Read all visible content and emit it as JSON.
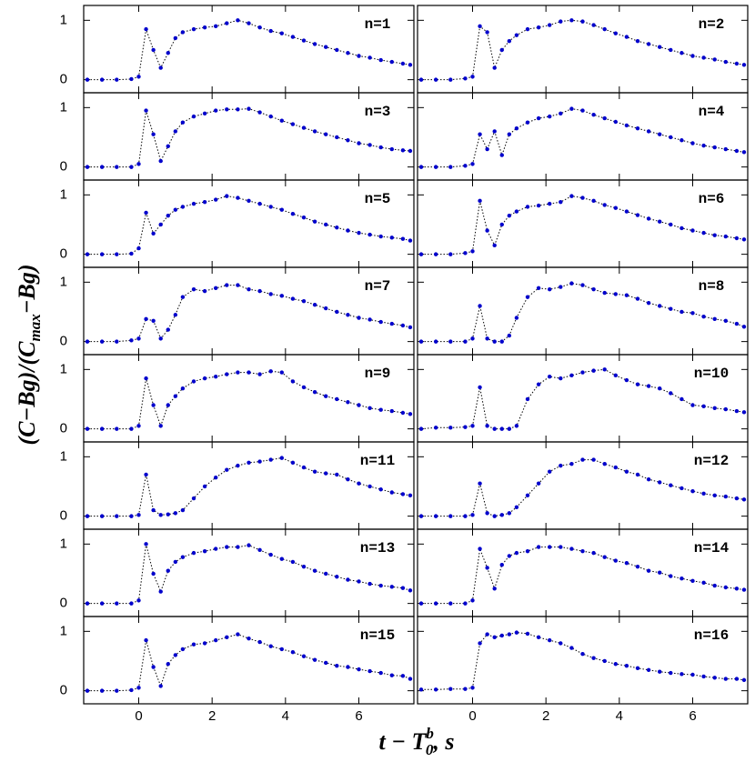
{
  "chart_data": {
    "type": "line",
    "layout": "panels-2-columns",
    "xlabel": {
      "text1": "t  −  T",
      "sub": "0",
      "sup": "b",
      "text2": ",  s"
    },
    "ylabel": {
      "text1": "(C−Bg)/(C",
      "sub": "max",
      "text2": "−Bg)"
    },
    "xlim": [
      -1.5,
      7.5
    ],
    "xticks": [
      0,
      2,
      4,
      6
    ],
    "ylim": [
      -0.22,
      1.25
    ],
    "yticks": [
      0,
      1
    ],
    "line_color": "#000000",
    "x": [
      -1.4,
      -1.0,
      -0.6,
      -0.2,
      0,
      0.2,
      0.4,
      0.6,
      0.8,
      1.0,
      1.2,
      1.5,
      1.8,
      2.1,
      2.4,
      2.7,
      3.0,
      3.3,
      3.6,
      3.9,
      4.2,
      4.5,
      4.8,
      5.1,
      5.4,
      5.7,
      6.0,
      6.3,
      6.6,
      6.9,
      7.2,
      7.4
    ],
    "series": [
      {
        "name": "n=1",
        "color": "#0000cc",
        "values": [
          0,
          0,
          0,
          0.01,
          0.05,
          0.85,
          0.5,
          0.2,
          0.45,
          0.7,
          0.8,
          0.85,
          0.88,
          0.9,
          0.95,
          1.0,
          0.95,
          0.88,
          0.82,
          0.78,
          0.72,
          0.66,
          0.6,
          0.55,
          0.5,
          0.45,
          0.4,
          0.37,
          0.33,
          0.3,
          0.27,
          0.25
        ]
      },
      {
        "name": "n=2",
        "color": "#0000cc",
        "values": [
          0,
          0,
          0,
          0.02,
          0.05,
          0.9,
          0.8,
          0.2,
          0.5,
          0.65,
          0.75,
          0.85,
          0.88,
          0.92,
          0.98,
          1.0,
          0.98,
          0.92,
          0.85,
          0.78,
          0.72,
          0.65,
          0.6,
          0.55,
          0.5,
          0.45,
          0.4,
          0.37,
          0.34,
          0.3,
          0.27,
          0.25
        ]
      },
      {
        "name": "n=3",
        "color": "#0000cc",
        "values": [
          0,
          0,
          0,
          0,
          0.05,
          0.95,
          0.55,
          0.1,
          0.35,
          0.6,
          0.75,
          0.85,
          0.9,
          0.95,
          0.97,
          0.97,
          0.98,
          0.92,
          0.85,
          0.78,
          0.72,
          0.66,
          0.6,
          0.55,
          0.5,
          0.45,
          0.4,
          0.37,
          0.33,
          0.3,
          0.28,
          0.27
        ]
      },
      {
        "name": "n=4",
        "color": "#0000cc",
        "values": [
          0,
          0,
          0,
          0.02,
          0.05,
          0.55,
          0.3,
          0.6,
          0.2,
          0.55,
          0.65,
          0.75,
          0.82,
          0.85,
          0.9,
          0.98,
          0.95,
          0.88,
          0.82,
          0.76,
          0.7,
          0.65,
          0.6,
          0.55,
          0.5,
          0.45,
          0.4,
          0.36,
          0.33,
          0.3,
          0.27,
          0.25
        ]
      },
      {
        "name": "n=5",
        "color": "#0000cc",
        "values": [
          0,
          0,
          0,
          0.01,
          0.1,
          0.7,
          0.35,
          0.5,
          0.65,
          0.75,
          0.8,
          0.85,
          0.88,
          0.92,
          0.98,
          0.95,
          0.9,
          0.85,
          0.8,
          0.75,
          0.68,
          0.62,
          0.55,
          0.5,
          0.45,
          0.4,
          0.36,
          0.33,
          0.3,
          0.28,
          0.26,
          0.23
        ]
      },
      {
        "name": "n=6",
        "color": "#0000cc",
        "values": [
          0,
          0,
          0,
          0.02,
          0.05,
          0.9,
          0.4,
          0.15,
          0.5,
          0.65,
          0.72,
          0.8,
          0.82,
          0.85,
          0.88,
          0.98,
          0.95,
          0.9,
          0.83,
          0.78,
          0.72,
          0.66,
          0.6,
          0.55,
          0.5,
          0.44,
          0.4,
          0.36,
          0.32,
          0.3,
          0.27,
          0.25
        ]
      },
      {
        "name": "n=7",
        "color": "#0000cc",
        "values": [
          0,
          0,
          0,
          0.02,
          0.05,
          0.38,
          0.35,
          0.05,
          0.2,
          0.45,
          0.75,
          0.88,
          0.85,
          0.9,
          0.95,
          0.95,
          0.88,
          0.85,
          0.8,
          0.77,
          0.72,
          0.68,
          0.62,
          0.56,
          0.5,
          0.45,
          0.4,
          0.37,
          0.33,
          0.3,
          0.27,
          0.24
        ]
      },
      {
        "name": "n=8",
        "color": "#0000cc",
        "values": [
          0,
          0,
          0,
          0,
          0.05,
          0.6,
          0.05,
          0,
          0,
          0.1,
          0.4,
          0.75,
          0.9,
          0.88,
          0.92,
          0.98,
          0.95,
          0.88,
          0.82,
          0.8,
          0.78,
          0.72,
          0.65,
          0.6,
          0.55,
          0.5,
          0.48,
          0.42,
          0.38,
          0.35,
          0.3,
          0.25
        ]
      },
      {
        "name": "n=9",
        "color": "#0000cc",
        "values": [
          0,
          0,
          0,
          0,
          0.05,
          0.85,
          0.4,
          0.05,
          0.4,
          0.55,
          0.68,
          0.8,
          0.85,
          0.88,
          0.92,
          0.95,
          0.95,
          0.92,
          0.97,
          0.95,
          0.8,
          0.7,
          0.62,
          0.55,
          0.5,
          0.45,
          0.4,
          0.35,
          0.32,
          0.3,
          0.27,
          0.25
        ]
      },
      {
        "name": "n=10",
        "color": "#0000cc",
        "values": [
          0,
          0.02,
          0.02,
          0.03,
          0.05,
          0.7,
          0.05,
          0,
          0,
          0,
          0.05,
          0.5,
          0.75,
          0.88,
          0.85,
          0.9,
          0.95,
          0.98,
          1.0,
          0.9,
          0.82,
          0.75,
          0.72,
          0.68,
          0.6,
          0.5,
          0.4,
          0.38,
          0.35,
          0.33,
          0.3,
          0.28
        ]
      },
      {
        "name": "n=11",
        "color": "#0000cc",
        "values": [
          0,
          0,
          0,
          0,
          0.02,
          0.7,
          0.1,
          0.02,
          0.03,
          0.05,
          0.1,
          0.3,
          0.5,
          0.65,
          0.78,
          0.85,
          0.9,
          0.92,
          0.95,
          0.98,
          0.9,
          0.82,
          0.75,
          0.72,
          0.7,
          0.62,
          0.55,
          0.5,
          0.45,
          0.4,
          0.37,
          0.35
        ]
      },
      {
        "name": "n=12",
        "color": "#0000cc",
        "values": [
          0,
          0,
          0,
          0,
          0.02,
          0.55,
          0.05,
          0,
          0.02,
          0.05,
          0.15,
          0.35,
          0.55,
          0.75,
          0.85,
          0.88,
          0.95,
          0.95,
          0.88,
          0.82,
          0.75,
          0.7,
          0.62,
          0.57,
          0.52,
          0.47,
          0.42,
          0.38,
          0.35,
          0.33,
          0.3,
          0.28
        ]
      },
      {
        "name": "n=13",
        "color": "#0000cc",
        "values": [
          0,
          0,
          0,
          0,
          0.05,
          1.0,
          0.5,
          0.2,
          0.55,
          0.7,
          0.78,
          0.85,
          0.88,
          0.92,
          0.95,
          0.95,
          0.98,
          0.9,
          0.82,
          0.75,
          0.7,
          0.62,
          0.55,
          0.5,
          0.45,
          0.4,
          0.37,
          0.33,
          0.3,
          0.28,
          0.26,
          0.22
        ]
      },
      {
        "name": "n=14",
        "color": "#0000cc",
        "values": [
          0,
          0,
          0,
          0,
          0.05,
          0.92,
          0.6,
          0.25,
          0.65,
          0.8,
          0.85,
          0.88,
          0.95,
          0.95,
          0.95,
          0.92,
          0.88,
          0.85,
          0.78,
          0.72,
          0.68,
          0.62,
          0.55,
          0.52,
          0.46,
          0.42,
          0.38,
          0.35,
          0.3,
          0.27,
          0.25,
          0.23
        ]
      },
      {
        "name": "n=15",
        "color": "#0000cc",
        "values": [
          0,
          0,
          0,
          0.01,
          0.05,
          0.85,
          0.4,
          0.08,
          0.45,
          0.6,
          0.7,
          0.78,
          0.8,
          0.85,
          0.9,
          0.95,
          0.88,
          0.82,
          0.75,
          0.7,
          0.65,
          0.58,
          0.52,
          0.47,
          0.42,
          0.4,
          0.36,
          0.33,
          0.3,
          0.26,
          0.25,
          0.2
        ]
      },
      {
        "name": "n=16",
        "color": "#0000cc",
        "values": [
          0.02,
          0.02,
          0.03,
          0.03,
          0.05,
          0.8,
          0.95,
          0.9,
          0.93,
          0.95,
          0.98,
          0.96,
          0.9,
          0.85,
          0.8,
          0.72,
          0.62,
          0.55,
          0.5,
          0.45,
          0.42,
          0.38,
          0.35,
          0.32,
          0.3,
          0.28,
          0.27,
          0.24,
          0.22,
          0.2,
          0.2,
          0.18
        ]
      }
    ]
  }
}
